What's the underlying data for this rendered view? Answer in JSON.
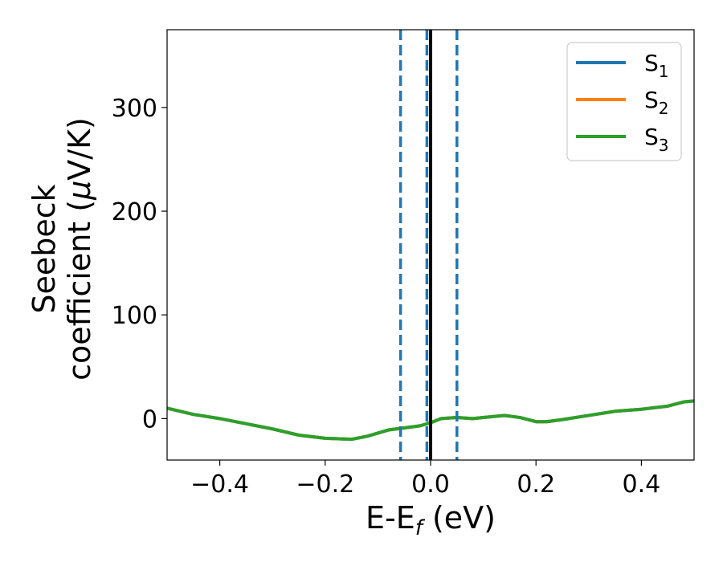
{
  "chart_data": {
    "type": "line",
    "xlabel": {
      "base": "E-E",
      "sub": "f",
      "suffix": " (eV)"
    },
    "ylabel": {
      "line1": "Seebeck",
      "line2_prefix": "coefficient  (",
      "line2_mu": "μ",
      "line2_suffix": "V/K)"
    },
    "xlim": [
      -0.5,
      0.5
    ],
    "ylim": [
      -40,
      375
    ],
    "xticks": [
      -0.4,
      -0.2,
      0.0,
      0.2,
      0.4
    ],
    "xtick_labels": [
      "−0.4",
      "−0.2",
      "0.0",
      "0.2",
      "0.4"
    ],
    "yticks": [
      0,
      100,
      200,
      300
    ],
    "ytick_labels": [
      "0",
      "100",
      "200",
      "300"
    ],
    "grid": false,
    "legend_position": "top-right",
    "vertical_lines": [
      {
        "x": 0.0,
        "style": "solid",
        "color": "#000000"
      },
      {
        "x": -0.057,
        "style": "dashed",
        "color": "#1f77b4"
      },
      {
        "x": -0.007,
        "style": "dashed",
        "color": "#1f77b4"
      },
      {
        "x": 0.05,
        "style": "dashed",
        "color": "#1f77b4"
      }
    ],
    "x": [
      -0.5,
      -0.45,
      -0.4,
      -0.35,
      -0.3,
      -0.25,
      -0.2,
      -0.15,
      -0.12,
      -0.08,
      -0.05,
      -0.02,
      0.0,
      0.02,
      0.05,
      0.08,
      0.1,
      0.14,
      0.17,
      0.2,
      0.22,
      0.25,
      0.3,
      0.35,
      0.4,
      0.45,
      0.48,
      0.5
    ],
    "series": [
      {
        "name": "S",
        "sub": "1",
        "color": "#1f77b4",
        "values": [
          10,
          4,
          0,
          -5,
          -10,
          -16,
          -19,
          -20,
          -17,
          -11,
          -9,
          -7,
          -4,
          0,
          1,
          0,
          1,
          3,
          1,
          -3,
          -3,
          -1,
          3,
          7,
          9,
          12,
          16,
          17
        ]
      },
      {
        "name": "S",
        "sub": "2",
        "color": "#ff7f0e",
        "values": [
          10,
          4,
          0,
          -5,
          -10,
          -16,
          -19,
          -20,
          -17,
          -11,
          -9,
          -7,
          -4,
          0,
          1,
          0,
          1,
          3,
          1,
          -3,
          -3,
          -1,
          3,
          7,
          9,
          12,
          16,
          17
        ]
      },
      {
        "name": "S",
        "sub": "3",
        "color": "#2ca02c",
        "values": [
          10,
          4,
          0,
          -5,
          -10,
          -16,
          -19,
          -20,
          -17,
          -11,
          -9,
          -7,
          -4,
          0,
          1,
          0,
          1,
          3,
          1,
          -3,
          -3,
          -1,
          3,
          7,
          9,
          12,
          16,
          17
        ]
      }
    ]
  }
}
